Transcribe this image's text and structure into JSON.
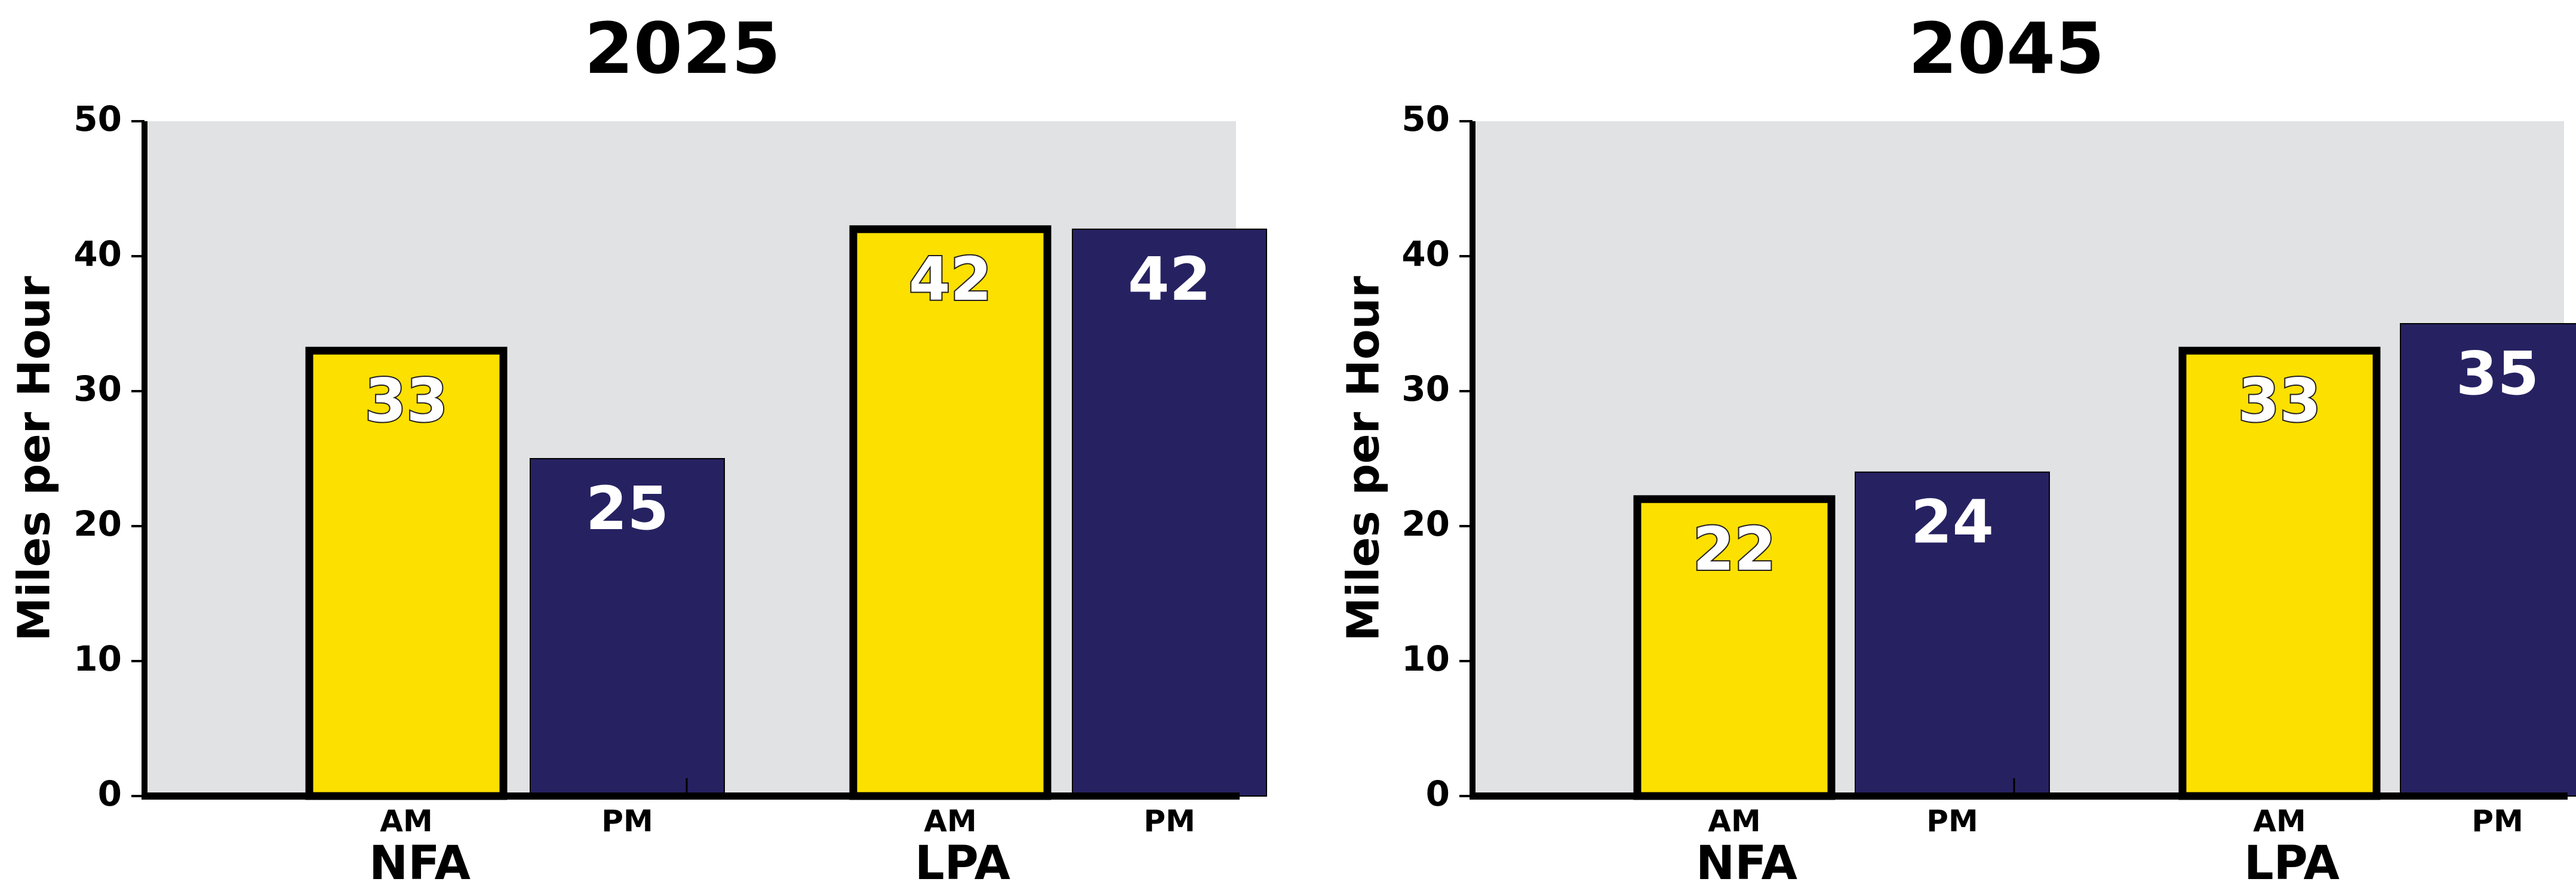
{
  "colors": {
    "am": "#FCE000",
    "pm": "#262262",
    "plot_bg": "#E1E2E4",
    "axis": "#000000",
    "label_text": "#FFFFFF"
  },
  "chart_data": [
    {
      "type": "bar",
      "title": "2025",
      "ylabel": "Miles per Hour",
      "ylim": [
        0,
        50
      ],
      "yticks": [
        "0",
        "10",
        "20",
        "30",
        "40",
        "50"
      ],
      "groups": [
        "NFA",
        "LPA"
      ],
      "categories": [
        "AM",
        "PM"
      ],
      "series": [
        {
          "name": "AM",
          "values": [
            33,
            42
          ]
        },
        {
          "name": "PM",
          "values": [
            25,
            42
          ]
        }
      ],
      "data_labels": [
        [
          "33",
          "25"
        ],
        [
          "42",
          "42"
        ]
      ],
      "grid": false
    },
    {
      "type": "bar",
      "title": "2045",
      "ylabel": "Miles per Hour",
      "ylim": [
        0,
        50
      ],
      "yticks": [
        "0",
        "10",
        "20",
        "30",
        "40",
        "50"
      ],
      "groups": [
        "NFA",
        "LPA"
      ],
      "categories": [
        "AM",
        "PM"
      ],
      "series": [
        {
          "name": "AM",
          "values": [
            22,
            33
          ]
        },
        {
          "name": "PM",
          "values": [
            24,
            35
          ]
        }
      ],
      "data_labels": [
        [
          "22",
          "24"
        ],
        [
          "33",
          "35"
        ]
      ],
      "grid": false
    }
  ]
}
